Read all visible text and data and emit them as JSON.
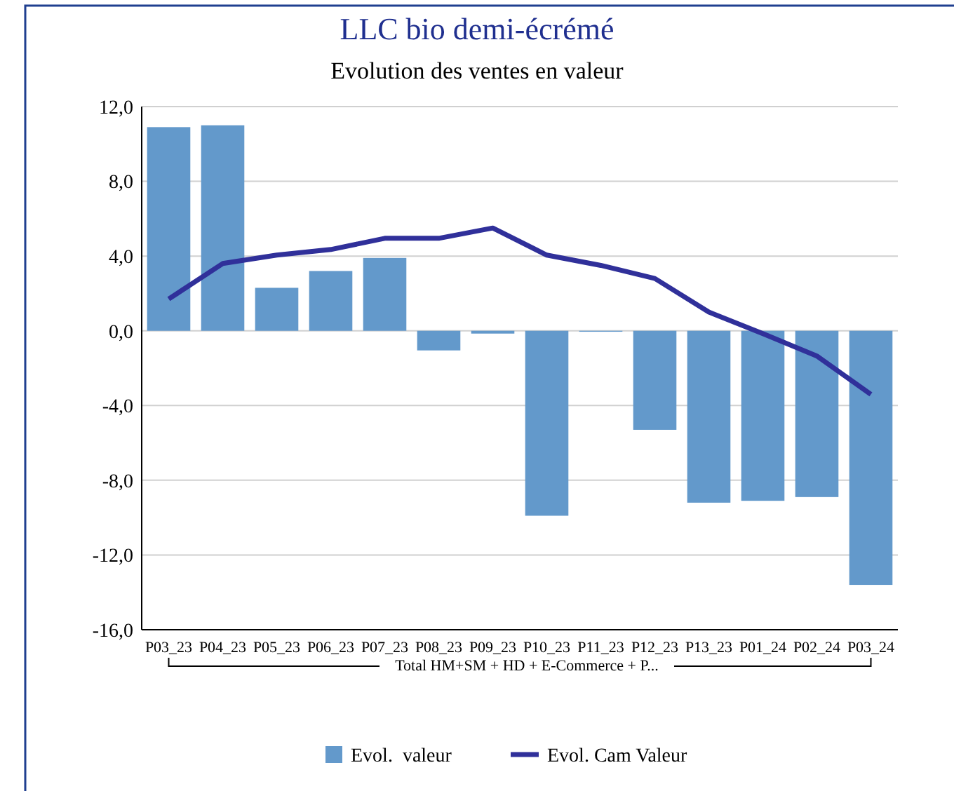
{
  "chart_data": {
    "type": "bar",
    "title": "LLC bio demi-écrémé",
    "subtitle": "Evolution des ventes en valeur",
    "xlabel": "Total HM+SM + HD + E-Commerce + P...",
    "categories": [
      "P03_23",
      "P04_23",
      "P05_23",
      "P06_23",
      "P07_23",
      "P08_23",
      "P09_23",
      "P10_23",
      "P11_23",
      "P12_23",
      "P13_23",
      "P01_24",
      "P02_24",
      "P03_24"
    ],
    "series": [
      {
        "name": "Evol.  valeur",
        "color": "#6399cb",
        "values": [
          10.9,
          11.0,
          2.3,
          3.2,
          3.9,
          -1.05,
          -0.15,
          -9.9,
          -0.05,
          -5.3,
          -9.2,
          -9.1,
          -8.9,
          -13.6
        ]
      },
      {
        "name": "Evol. Cam Valeur",
        "type": "line",
        "color": "#30309a",
        "values": [
          1.7,
          3.6,
          4.05,
          4.35,
          4.95,
          4.95,
          5.5,
          4.05,
          3.5,
          2.8,
          1.0,
          -0.15,
          -1.35,
          -3.4
        ]
      }
    ],
    "ylim": [
      -16,
      12
    ],
    "yticks": [
      {
        "value": -16,
        "label": "-16,0"
      },
      {
        "value": -12,
        "label": "-12,0"
      },
      {
        "value": -8,
        "label": "-8,0"
      },
      {
        "value": -4,
        "label": "-4,0"
      },
      {
        "value": 0,
        "label": "0,0"
      },
      {
        "value": 4,
        "label": "4,0"
      },
      {
        "value": 8,
        "label": "8,0"
      },
      {
        "value": 12,
        "label": "12,0"
      }
    ],
    "grid": "y",
    "legend": "bottom",
    "marker": "none",
    "line_style": "solid"
  }
}
